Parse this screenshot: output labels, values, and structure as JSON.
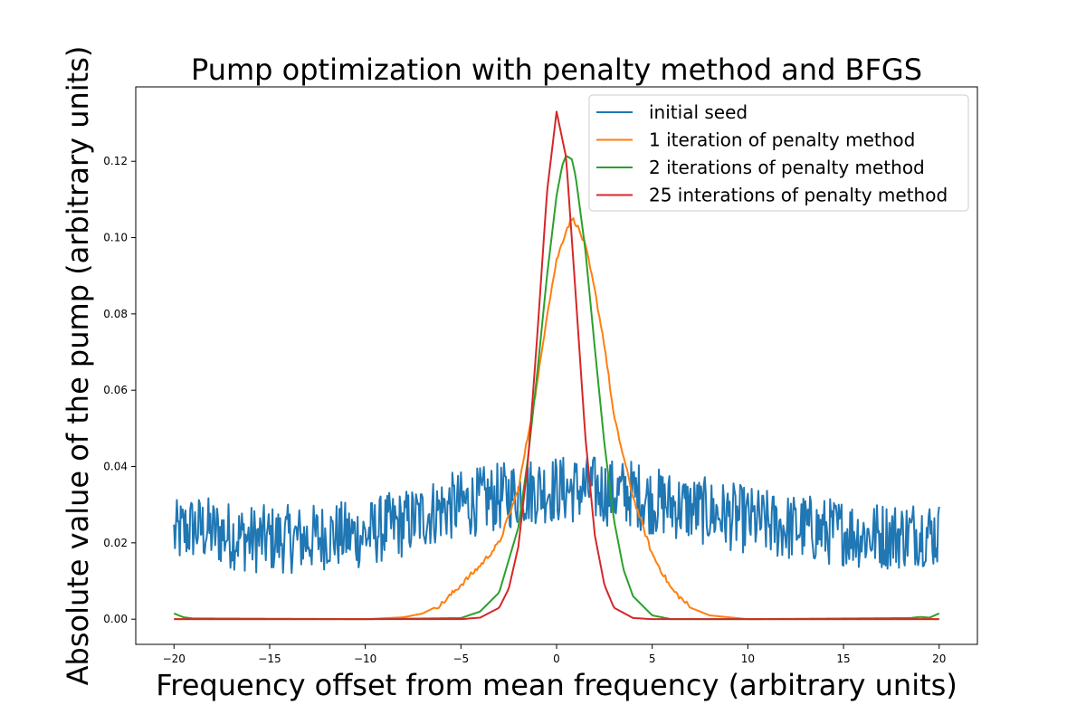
{
  "chart_data": {
    "type": "line",
    "title": "Pump optimization with penalty method and BFGS",
    "xlabel": "Frequency offset from mean frequency (arbitrary units)",
    "ylabel": "Absolute value of the pump (arbitrary units)",
    "xlim": [
      -22,
      22
    ],
    "ylim": [
      -0.0066,
      0.1395
    ],
    "x_ticks": [
      -20,
      -15,
      -10,
      -5,
      0,
      5,
      10,
      15,
      20
    ],
    "x_tick_labels": [
      "−20",
      "−15",
      "−10",
      "−5",
      "0",
      "5",
      "10",
      "15",
      "20"
    ],
    "y_ticks": [
      0.0,
      0.02,
      0.04,
      0.06,
      0.08,
      0.1,
      0.12
    ],
    "y_tick_labels": [
      "0.00",
      "0.02",
      "0.04",
      "0.06",
      "0.08",
      "0.10",
      "0.12"
    ],
    "grid": false,
    "legend_position": "top-right",
    "series": [
      {
        "name": "initial seed",
        "color": "#1f77b4",
        "x": [
          -20,
          -19,
          -18,
          -17,
          -16,
          -15,
          -14,
          -13,
          -12,
          -11,
          -10,
          -9,
          -8,
          -7,
          -6,
          -5,
          -4,
          -3,
          -2,
          -1,
          0,
          1,
          2,
          3,
          4,
          5,
          6,
          7,
          8,
          9,
          10,
          11,
          12,
          13,
          14,
          15,
          16,
          17,
          18,
          19,
          20
        ],
        "y": [
          0.022,
          0.024,
          0.023,
          0.022,
          0.021,
          0.021,
          0.021,
          0.021,
          0.022,
          0.022,
          0.022,
          0.024,
          0.025,
          0.027,
          0.029,
          0.03,
          0.031,
          0.032,
          0.033,
          0.034,
          0.034,
          0.034,
          0.034,
          0.033,
          0.033,
          0.031,
          0.03,
          0.029,
          0.028,
          0.027,
          0.026,
          0.025,
          0.024,
          0.024,
          0.023,
          0.023,
          0.022,
          0.022,
          0.022,
          0.023,
          0.022
        ],
        "noise_amplitude": 0.009
      },
      {
        "name": "1 iteration of penalty method",
        "color": "#ff7f0e",
        "x": [
          -20,
          -10,
          -8,
          -7,
          -6,
          -5,
          -4,
          -3,
          -2,
          -1.5,
          -1,
          -0.5,
          0,
          0.5,
          0.8,
          1,
          1.5,
          2,
          2.5,
          3,
          4,
          5,
          6,
          7,
          8,
          10,
          20
        ],
        "y": [
          0.0,
          0.0,
          0.0005,
          0.0015,
          0.004,
          0.009,
          0.014,
          0.02,
          0.034,
          0.048,
          0.062,
          0.08,
          0.094,
          0.102,
          0.105,
          0.104,
          0.098,
          0.086,
          0.072,
          0.053,
          0.032,
          0.017,
          0.008,
          0.003,
          0.001,
          0.0,
          0.0
        ]
      },
      {
        "name": "2 iterations of penalty method",
        "color": "#2ca02c",
        "x": [
          -20,
          -19.5,
          -19,
          -10,
          -5,
          -4,
          -3,
          -2,
          -1.5,
          -1,
          -0.5,
          0,
          0.3,
          0.5,
          0.8,
          1,
          1.5,
          2,
          2.5,
          3,
          3.5,
          4,
          5,
          6,
          10,
          18.5,
          19,
          19.5,
          20
        ],
        "y": [
          0.0015,
          0.0005,
          0.0002,
          0.0,
          0.0003,
          0.002,
          0.007,
          0.024,
          0.042,
          0.065,
          0.09,
          0.111,
          0.119,
          0.1215,
          0.1205,
          0.116,
          0.097,
          0.071,
          0.046,
          0.026,
          0.013,
          0.006,
          0.001,
          0.0,
          0.0,
          0.0003,
          0.0006,
          0.0004,
          0.0015
        ]
      },
      {
        "name": "25 interations of penalty method",
        "color": "#d62728",
        "x": [
          -20,
          -5,
          -4,
          -3,
          -2.5,
          -2,
          -1.5,
          -1,
          -0.5,
          0,
          0.5,
          1,
          1.5,
          2,
          2.5,
          3,
          4,
          5,
          20
        ],
        "y": [
          0.0,
          0.0,
          0.0004,
          0.003,
          0.008,
          0.019,
          0.041,
          0.075,
          0.112,
          0.133,
          0.121,
          0.085,
          0.048,
          0.022,
          0.009,
          0.003,
          0.0003,
          0.0,
          0.0
        ]
      }
    ]
  }
}
